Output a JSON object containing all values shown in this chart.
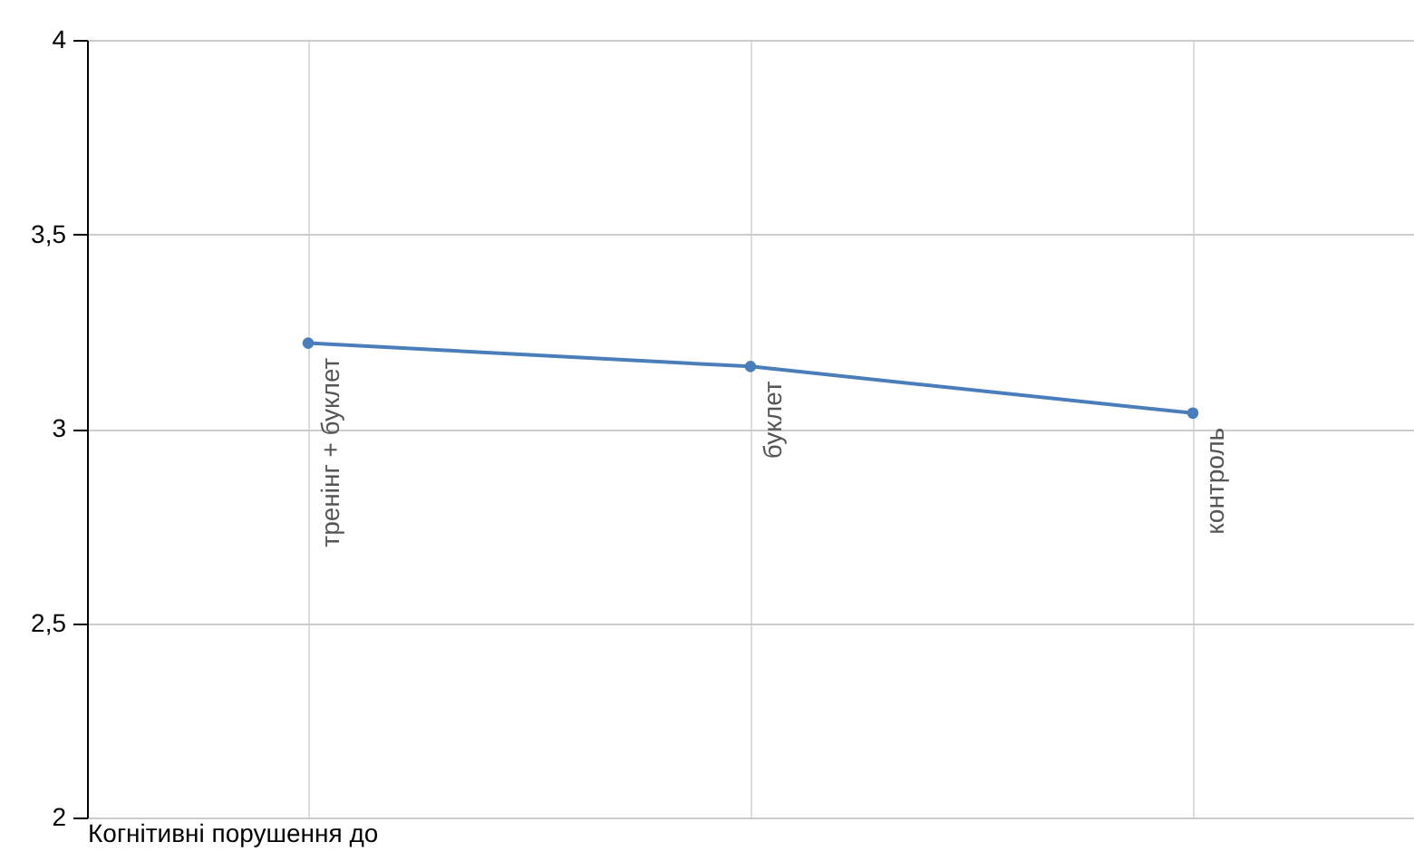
{
  "chart_data": {
    "type": "line",
    "xlabel": "Когнітивні порушення до",
    "categories": [
      "тренінг + буклет",
      "буклет",
      "контроль"
    ],
    "series": [
      {
        "color": "#4a7ebb",
        "values": [
          3.22,
          3.16,
          3.04
        ]
      }
    ],
    "ylim": [
      2,
      4
    ],
    "yticks": [
      2,
      {
        "value": 2.5,
        "label": "2,5"
      },
      3,
      {
        "value": 3.5,
        "label": "3,5"
      },
      4
    ],
    "grid": true,
    "marker": "circle",
    "legend": false
  }
}
